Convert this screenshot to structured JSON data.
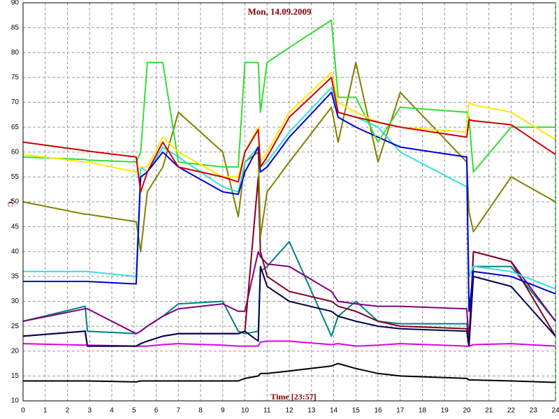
{
  "chart_data": {
    "type": "line",
    "title": "Mon, 14.09.2009",
    "xlabel": "Time [23:57]",
    "ylabel": "°C",
    "x": [
      0,
      2.8,
      2.9,
      5.1,
      5.3,
      5.6,
      6.3,
      7,
      9,
      9.7,
      10,
      10.6,
      10.7,
      11,
      12,
      13.9,
      14.2,
      15,
      16,
      17,
      20,
      20.1,
      20.3,
      22,
      24
    ],
    "xlim": [
      0,
      24
    ],
    "xticks": [
      0,
      1,
      2,
      3,
      4,
      5,
      6,
      7,
      8,
      9,
      10,
      11,
      12,
      13,
      14,
      15,
      16,
      17,
      18,
      19,
      20,
      21,
      22,
      23,
      24
    ],
    "ylim": [
      10,
      90
    ],
    "yticks": [
      10,
      15,
      20,
      25,
      30,
      35,
      40,
      45,
      50,
      55,
      60,
      65,
      70,
      75,
      80,
      85,
      90
    ],
    "grid": true,
    "series": [
      {
        "color": "#000000",
        "values": [
          14,
          14,
          14,
          13.8,
          14,
          14,
          14,
          14,
          14,
          14,
          14.5,
          15,
          15.5,
          15.5,
          16,
          17,
          17.5,
          16.5,
          15.5,
          15,
          14.5,
          14.2,
          14.2,
          14,
          13.7
        ]
      },
      {
        "color": "#e000e0",
        "values": [
          21.5,
          21.2,
          21.2,
          21,
          21,
          21,
          21.3,
          21.5,
          21.2,
          21,
          21,
          21,
          21.8,
          22,
          22,
          21.3,
          21.5,
          21,
          21.2,
          21.5,
          21,
          21,
          21.3,
          21.5,
          21
        ]
      },
      {
        "color": "#008080",
        "values": [
          26,
          29,
          24,
          23.5,
          24,
          25,
          27,
          29.5,
          30,
          24,
          23.5,
          24,
          36,
          37,
          42,
          23,
          27,
          30,
          26,
          25.5,
          25.5,
          22,
          37,
          37,
          26
        ]
      },
      {
        "color": "#800080",
        "values": [
          26,
          28.5,
          28.5,
          23.5,
          24,
          25,
          27,
          28.5,
          29.5,
          28,
          28,
          40,
          39,
          37.5,
          37,
          32,
          30,
          29.5,
          29,
          29,
          28.5,
          22,
          40,
          38,
          26
        ]
      },
      {
        "color": "#800020",
        "values": [
          23,
          24,
          21,
          21,
          21.5,
          22,
          23,
          23.5,
          23.5,
          23.5,
          24,
          55,
          40,
          35,
          32,
          30,
          29,
          28,
          26,
          25,
          24.5,
          21,
          40,
          38,
          23
        ]
      },
      {
        "color": "#000050",
        "values": [
          23,
          24,
          21,
          21,
          21.5,
          22,
          23,
          23.5,
          23.5,
          23.5,
          24,
          22,
          37,
          33,
          30,
          28,
          27,
          26,
          25,
          24.5,
          24,
          21,
          35,
          33,
          23
        ]
      },
      {
        "color": "#808000",
        "values": [
          50,
          47.5,
          47.5,
          46,
          40,
          52,
          57,
          68,
          60,
          47,
          58,
          60,
          43,
          52,
          58,
          69,
          62,
          78,
          58,
          72,
          58,
          48,
          44,
          55,
          50
        ]
      },
      {
        "color": "#33e0e0",
        "values": [
          36,
          36,
          36,
          35,
          57,
          56,
          61,
          59,
          53,
          52,
          58,
          61,
          57,
          58,
          64,
          73,
          68,
          67,
          65,
          60,
          53,
          35,
          37,
          36,
          32.5
        ]
      },
      {
        "color": "#0000cc",
        "values": [
          34,
          34,
          34,
          33.5,
          55,
          56,
          60,
          57,
          52,
          51.5,
          56,
          61,
          56,
          57,
          63,
          72,
          67,
          65,
          63,
          61,
          59,
          28,
          36,
          35,
          31.5
        ]
      },
      {
        "color": "#33dd33",
        "values": [
          59,
          58.5,
          58.4,
          58,
          60,
          78,
          78,
          58,
          57,
          57,
          78,
          78,
          68,
          78,
          81,
          86.5,
          71,
          71,
          62,
          69,
          68,
          67,
          56,
          65,
          65
        ]
      },
      {
        "color": "#ffe800",
        "values": [
          59.5,
          58,
          58,
          56,
          57,
          57,
          63,
          60,
          55,
          55,
          60,
          65,
          58,
          60,
          68,
          76,
          70,
          68,
          66,
          65,
          64,
          70,
          69.5,
          68,
          62.5
        ]
      },
      {
        "color": "#d00000",
        "values": [
          62,
          60.3,
          60.2,
          59,
          52,
          56,
          62,
          57,
          55,
          54,
          60,
          64.5,
          57,
          59,
          67,
          75,
          68,
          67,
          66,
          65,
          63,
          66.5,
          66.3,
          65.5,
          59.5
        ]
      }
    ]
  }
}
